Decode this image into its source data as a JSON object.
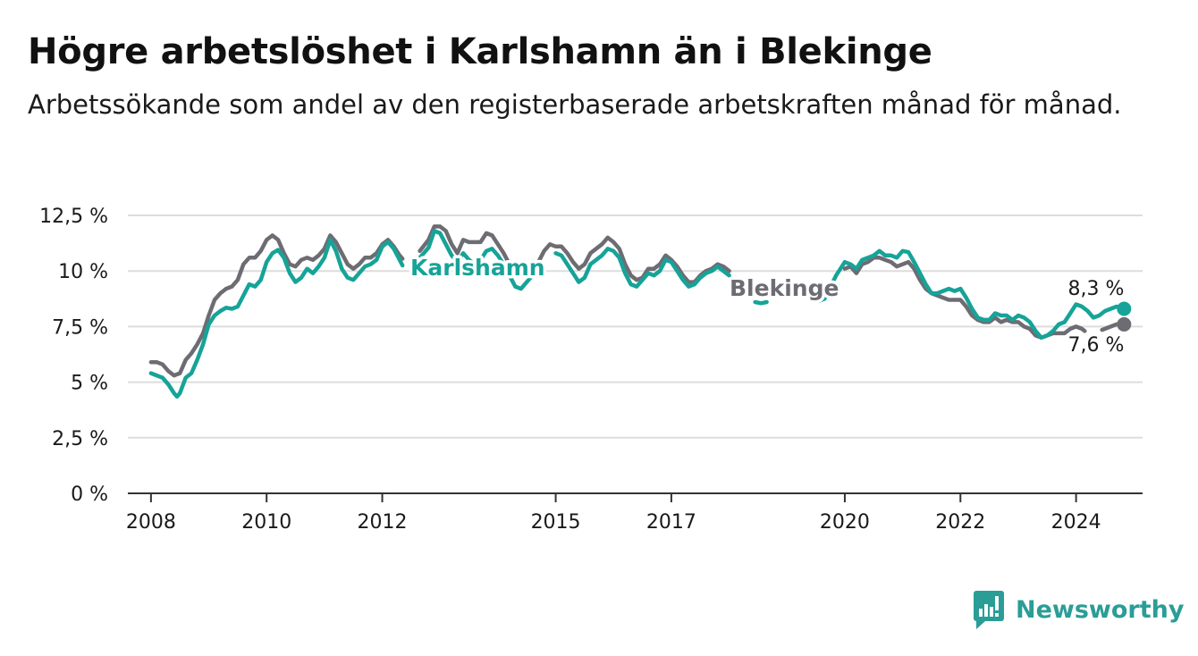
{
  "title": "Högre arbetslöshet i Karlshamn än i Blekinge",
  "subtitle": "Arbetssökande som andel av den registerbaserade arbetskraften månad för månad.",
  "brand": {
    "name": "Newsworthy",
    "icon": "bar-chart-logo-icon"
  },
  "colors": {
    "karlshamn": "#16a398",
    "blekinge": "#6e6c73",
    "grid": "#dddddd",
    "axis": "#333333"
  },
  "chart_data": {
    "type": "line",
    "x_unit": "year",
    "xlim": [
      2007.6,
      2025.15
    ],
    "ylim": [
      0,
      12.5
    ],
    "y_ticks": [
      0,
      2.5,
      5,
      7.5,
      10,
      12.5
    ],
    "y_tick_labels": [
      "0 %",
      "2,5 %",
      "5 %",
      "7,5 %",
      "10 %",
      "12,5 %"
    ],
    "x_ticks": [
      2008,
      2010,
      2012,
      2015,
      2017,
      2020,
      2022,
      2024
    ],
    "x_tick_labels": [
      "2008",
      "2010",
      "2012",
      "2015",
      "2017",
      "2020",
      "2022",
      "2024"
    ],
    "grid": "horizontal",
    "legend": "inline labels",
    "series": [
      {
        "name": "Karlshamn",
        "color": "#16a398",
        "end_label": "8,3 %",
        "points": [
          [
            2008.0,
            5.4
          ],
          [
            2008.1,
            5.3
          ],
          [
            2008.2,
            5.2
          ],
          [
            2008.3,
            4.9
          ],
          [
            2008.4,
            4.5
          ],
          [
            2008.45,
            4.35
          ],
          [
            2008.5,
            4.5
          ],
          [
            2008.6,
            5.2
          ],
          [
            2008.7,
            5.4
          ],
          [
            2008.8,
            6.0
          ],
          [
            2008.9,
            6.7
          ],
          [
            2009.0,
            7.6
          ],
          [
            2009.1,
            8.0
          ],
          [
            2009.2,
            8.2
          ],
          [
            2009.3,
            8.35
          ],
          [
            2009.4,
            8.3
          ],
          [
            2009.5,
            8.4
          ],
          [
            2009.6,
            8.9
          ],
          [
            2009.7,
            9.4
          ],
          [
            2009.8,
            9.3
          ],
          [
            2009.9,
            9.6
          ],
          [
            2010.0,
            10.4
          ],
          [
            2010.1,
            10.8
          ],
          [
            2010.2,
            10.95
          ],
          [
            2010.3,
            10.6
          ],
          [
            2010.4,
            9.9
          ],
          [
            2010.5,
            9.5
          ],
          [
            2010.6,
            9.7
          ],
          [
            2010.7,
            10.1
          ],
          [
            2010.8,
            9.9
          ],
          [
            2010.9,
            10.2
          ],
          [
            2011.0,
            10.6
          ],
          [
            2011.1,
            11.4
          ],
          [
            2011.2,
            10.9
          ],
          [
            2011.3,
            10.1
          ],
          [
            2011.4,
            9.7
          ],
          [
            2011.5,
            9.6
          ],
          [
            2011.6,
            9.9
          ],
          [
            2011.7,
            10.2
          ],
          [
            2011.8,
            10.3
          ],
          [
            2011.9,
            10.5
          ],
          [
            2012.0,
            11.1
          ],
          [
            2012.1,
            11.3
          ],
          [
            2012.2,
            11.0
          ],
          [
            2012.3,
            10.5
          ],
          [
            2012.35,
            10.25
          ],
          [
            2012.65,
            10.6
          ],
          [
            2012.8,
            11.05
          ],
          [
            2012.9,
            11.8
          ],
          [
            2013.0,
            11.7
          ],
          [
            2013.1,
            11.2
          ],
          [
            2013.2,
            10.7
          ],
          [
            2013.3,
            10.4
          ],
          [
            2013.4,
            10.8
          ],
          [
            2013.5,
            10.5
          ],
          [
            2013.6,
            10.3
          ],
          [
            2013.7,
            10.5
          ],
          [
            2013.8,
            10.9
          ],
          [
            2013.9,
            11.0
          ],
          [
            2014.0,
            10.7
          ],
          [
            2014.1,
            10.3
          ],
          [
            2014.2,
            9.8
          ],
          [
            2014.3,
            9.3
          ],
          [
            2014.4,
            9.2
          ],
          [
            2014.5,
            9.5
          ],
          [
            2014.6,
            9.8
          ],
          [
            2014.7,
            9.9
          ],
          [
            2015.0,
            10.8
          ],
          [
            2015.1,
            10.7
          ],
          [
            2015.2,
            10.3
          ],
          [
            2015.3,
            9.9
          ],
          [
            2015.4,
            9.5
          ],
          [
            2015.5,
            9.7
          ],
          [
            2015.6,
            10.3
          ],
          [
            2015.7,
            10.5
          ],
          [
            2015.8,
            10.7
          ],
          [
            2015.9,
            11.0
          ],
          [
            2016.0,
            10.9
          ],
          [
            2016.1,
            10.6
          ],
          [
            2016.2,
            9.9
          ],
          [
            2016.3,
            9.4
          ],
          [
            2016.4,
            9.3
          ],
          [
            2016.5,
            9.6
          ],
          [
            2016.6,
            9.9
          ],
          [
            2016.7,
            9.8
          ],
          [
            2016.8,
            10.0
          ],
          [
            2016.9,
            10.5
          ],
          [
            2017.0,
            10.4
          ],
          [
            2017.1,
            10.0
          ],
          [
            2017.2,
            9.6
          ],
          [
            2017.3,
            9.3
          ],
          [
            2017.4,
            9.4
          ],
          [
            2017.5,
            9.7
          ],
          [
            2017.6,
            9.9
          ],
          [
            2017.7,
            10.0
          ],
          [
            2017.8,
            10.2
          ],
          [
            2017.9,
            10.0
          ],
          [
            2018.0,
            9.8
          ],
          [
            2018.45,
            8.6
          ],
          [
            2018.55,
            8.55
          ],
          [
            2018.65,
            8.6
          ],
          [
            2019.45,
            8.7
          ],
          [
            2019.55,
            8.65
          ],
          [
            2019.65,
            8.75
          ],
          [
            2019.85,
            9.8
          ],
          [
            2020.0,
            10.4
          ],
          [
            2020.1,
            10.3
          ],
          [
            2020.2,
            10.1
          ],
          [
            2020.3,
            10.5
          ],
          [
            2020.4,
            10.6
          ],
          [
            2020.5,
            10.7
          ],
          [
            2020.6,
            10.9
          ],
          [
            2020.7,
            10.7
          ],
          [
            2020.8,
            10.7
          ],
          [
            2020.9,
            10.6
          ],
          [
            2021.0,
            10.9
          ],
          [
            2021.1,
            10.85
          ],
          [
            2021.2,
            10.4
          ],
          [
            2021.3,
            9.9
          ],
          [
            2021.4,
            9.4
          ],
          [
            2021.5,
            9.0
          ],
          [
            2021.6,
            9.0
          ],
          [
            2021.7,
            9.1
          ],
          [
            2021.8,
            9.2
          ],
          [
            2021.9,
            9.1
          ],
          [
            2022.0,
            9.2
          ],
          [
            2022.1,
            8.8
          ],
          [
            2022.2,
            8.3
          ],
          [
            2022.3,
            7.9
          ],
          [
            2022.4,
            7.8
          ],
          [
            2022.5,
            7.8
          ],
          [
            2022.6,
            8.1
          ],
          [
            2022.7,
            8.0
          ],
          [
            2022.8,
            8.0
          ],
          [
            2022.9,
            7.8
          ],
          [
            2023.0,
            8.0
          ],
          [
            2023.1,
            7.9
          ],
          [
            2023.2,
            7.7
          ],
          [
            2023.3,
            7.3
          ],
          [
            2023.4,
            7.0
          ],
          [
            2023.5,
            7.1
          ],
          [
            2023.6,
            7.3
          ],
          [
            2023.7,
            7.6
          ],
          [
            2023.8,
            7.7
          ],
          [
            2023.9,
            8.1
          ],
          [
            2024.0,
            8.5
          ],
          [
            2024.1,
            8.4
          ],
          [
            2024.2,
            8.2
          ],
          [
            2024.3,
            7.9
          ],
          [
            2024.4,
            8.0
          ],
          [
            2024.5,
            8.2
          ],
          [
            2024.6,
            8.3
          ],
          [
            2024.7,
            8.4
          ],
          [
            2024.83,
            8.3
          ]
        ]
      },
      {
        "name": "Blekinge",
        "color": "#6e6c73",
        "end_label": "7,6 %",
        "points": [
          [
            2008.0,
            5.9
          ],
          [
            2008.1,
            5.9
          ],
          [
            2008.2,
            5.8
          ],
          [
            2008.3,
            5.5
          ],
          [
            2008.4,
            5.3
          ],
          [
            2008.5,
            5.4
          ],
          [
            2008.6,
            6.0
          ],
          [
            2008.7,
            6.3
          ],
          [
            2008.8,
            6.7
          ],
          [
            2008.9,
            7.2
          ],
          [
            2009.0,
            8.0
          ],
          [
            2009.1,
            8.7
          ],
          [
            2009.2,
            9.0
          ],
          [
            2009.3,
            9.2
          ],
          [
            2009.4,
            9.3
          ],
          [
            2009.5,
            9.6
          ],
          [
            2009.6,
            10.3
          ],
          [
            2009.7,
            10.6
          ],
          [
            2009.8,
            10.6
          ],
          [
            2009.9,
            10.9
          ],
          [
            2010.0,
            11.4
          ],
          [
            2010.1,
            11.6
          ],
          [
            2010.2,
            11.4
          ],
          [
            2010.3,
            10.8
          ],
          [
            2010.4,
            10.3
          ],
          [
            2010.5,
            10.2
          ],
          [
            2010.6,
            10.5
          ],
          [
            2010.7,
            10.6
          ],
          [
            2010.8,
            10.5
          ],
          [
            2010.9,
            10.7
          ],
          [
            2011.0,
            11.0
          ],
          [
            2011.1,
            11.6
          ],
          [
            2011.2,
            11.3
          ],
          [
            2011.3,
            10.8
          ],
          [
            2011.4,
            10.3
          ],
          [
            2011.5,
            10.1
          ],
          [
            2011.6,
            10.3
          ],
          [
            2011.7,
            10.6
          ],
          [
            2011.8,
            10.6
          ],
          [
            2011.9,
            10.8
          ],
          [
            2012.0,
            11.2
          ],
          [
            2012.1,
            11.4
          ],
          [
            2012.2,
            11.1
          ],
          [
            2012.3,
            10.7
          ],
          [
            2012.35,
            10.55
          ],
          [
            2012.65,
            10.9
          ],
          [
            2012.8,
            11.4
          ],
          [
            2012.9,
            12.0
          ],
          [
            2013.0,
            12.0
          ],
          [
            2013.1,
            11.8
          ],
          [
            2013.2,
            11.2
          ],
          [
            2013.3,
            10.8
          ],
          [
            2013.4,
            11.4
          ],
          [
            2013.5,
            11.3
          ],
          [
            2013.6,
            11.3
          ],
          [
            2013.7,
            11.3
          ],
          [
            2013.8,
            11.7
          ],
          [
            2013.9,
            11.6
          ],
          [
            2014.0,
            11.2
          ],
          [
            2014.1,
            10.8
          ],
          [
            2014.2,
            10.3
          ],
          [
            2014.3,
            9.9
          ],
          [
            2014.4,
            9.8
          ],
          [
            2014.5,
            10.0
          ],
          [
            2014.6,
            10.2
          ],
          [
            2014.7,
            10.4
          ],
          [
            2014.8,
            10.9
          ],
          [
            2014.9,
            11.2
          ],
          [
            2015.0,
            11.1
          ],
          [
            2015.1,
            11.1
          ],
          [
            2015.2,
            10.8
          ],
          [
            2015.3,
            10.4
          ],
          [
            2015.4,
            10.1
          ],
          [
            2015.5,
            10.3
          ],
          [
            2015.6,
            10.8
          ],
          [
            2015.7,
            11.0
          ],
          [
            2015.8,
            11.2
          ],
          [
            2015.9,
            11.5
          ],
          [
            2016.0,
            11.3
          ],
          [
            2016.1,
            11.0
          ],
          [
            2016.2,
            10.3
          ],
          [
            2016.3,
            9.8
          ],
          [
            2016.4,
            9.6
          ],
          [
            2016.5,
            9.7
          ],
          [
            2016.6,
            10.1
          ],
          [
            2016.7,
            10.1
          ],
          [
            2016.8,
            10.3
          ],
          [
            2016.9,
            10.7
          ],
          [
            2017.0,
            10.5
          ],
          [
            2017.1,
            10.2
          ],
          [
            2017.2,
            9.8
          ],
          [
            2017.3,
            9.5
          ],
          [
            2017.4,
            9.5
          ],
          [
            2017.5,
            9.8
          ],
          [
            2017.6,
            10.0
          ],
          [
            2017.7,
            10.1
          ],
          [
            2017.8,
            10.3
          ],
          [
            2017.9,
            10.2
          ],
          [
            2018.0,
            10.0
          ],
          [
            2019.8,
            9.7
          ],
          [
            2020.0,
            10.1
          ],
          [
            2020.1,
            10.2
          ],
          [
            2020.2,
            9.9
          ],
          [
            2020.3,
            10.3
          ],
          [
            2020.4,
            10.4
          ],
          [
            2020.5,
            10.6
          ],
          [
            2020.6,
            10.6
          ],
          [
            2020.7,
            10.5
          ],
          [
            2020.8,
            10.4
          ],
          [
            2020.9,
            10.2
          ],
          [
            2021.0,
            10.3
          ],
          [
            2021.1,
            10.4
          ],
          [
            2021.2,
            10.1
          ],
          [
            2021.3,
            9.6
          ],
          [
            2021.4,
            9.2
          ],
          [
            2021.5,
            9.0
          ],
          [
            2021.6,
            8.9
          ],
          [
            2021.7,
            8.8
          ],
          [
            2021.8,
            8.7
          ],
          [
            2021.9,
            8.7
          ],
          [
            2022.0,
            8.7
          ],
          [
            2022.1,
            8.4
          ],
          [
            2022.2,
            8.0
          ],
          [
            2022.3,
            7.8
          ],
          [
            2022.4,
            7.7
          ],
          [
            2022.5,
            7.7
          ],
          [
            2022.6,
            7.9
          ],
          [
            2022.7,
            7.7
          ],
          [
            2022.8,
            7.8
          ],
          [
            2022.9,
            7.7
          ],
          [
            2023.0,
            7.7
          ],
          [
            2023.1,
            7.5
          ],
          [
            2023.2,
            7.4
          ],
          [
            2023.3,
            7.1
          ],
          [
            2023.4,
            7.0
          ],
          [
            2023.5,
            7.1
          ],
          [
            2023.6,
            7.2
          ],
          [
            2023.7,
            7.2
          ],
          [
            2023.8,
            7.2
          ],
          [
            2023.9,
            7.4
          ],
          [
            2024.0,
            7.5
          ],
          [
            2024.1,
            7.4
          ],
          [
            2024.15,
            7.3
          ],
          [
            2024.45,
            7.35
          ],
          [
            2024.6,
            7.5
          ],
          [
            2024.7,
            7.6
          ],
          [
            2024.83,
            7.6
          ]
        ]
      }
    ]
  }
}
